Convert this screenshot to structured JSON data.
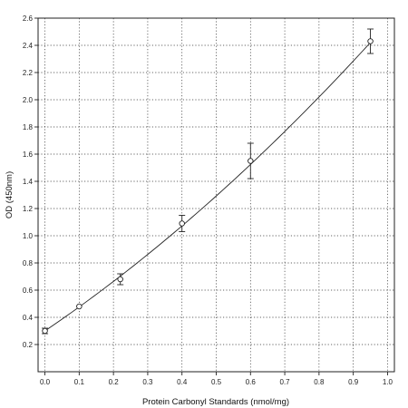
{
  "chart_data": {
    "type": "scatter",
    "xlabel": "Protein Carbonyl Standards (nmol/mg)",
    "ylabel": "OD (450nm)",
    "xlim": [
      -0.02,
      1.02
    ],
    "ylim": [
      0.0,
      2.6
    ],
    "x_ticks": [
      "0.0",
      "0.1",
      "0.2",
      "0.3",
      "0.4",
      "0.5",
      "0.6",
      "0.7",
      "0.8",
      "0.9",
      "1.0"
    ],
    "y_ticks": [
      "0.2",
      "0.4",
      "0.6",
      "0.8",
      "1.0",
      "1.2",
      "1.4",
      "1.6",
      "1.8",
      "2.0",
      "2.2",
      "2.4",
      "2.6"
    ],
    "grid": true,
    "points": [
      {
        "x": 0.0,
        "y": 0.3,
        "err": 0.02
      },
      {
        "x": 0.1,
        "y": 0.48,
        "err": 0.01
      },
      {
        "x": 0.22,
        "y": 0.68,
        "err": 0.04
      },
      {
        "x": 0.4,
        "y": 1.09,
        "err": 0.06
      },
      {
        "x": 0.6,
        "y": 1.55,
        "err": 0.13
      },
      {
        "x": 0.95,
        "y": 2.43,
        "err": 0.09
      }
    ],
    "fit_curve": {
      "type": "polynomial",
      "coefficients": [
        0.3,
        1.71,
        0.55
      ],
      "x_range": [
        0.0,
        0.95
      ]
    }
  }
}
